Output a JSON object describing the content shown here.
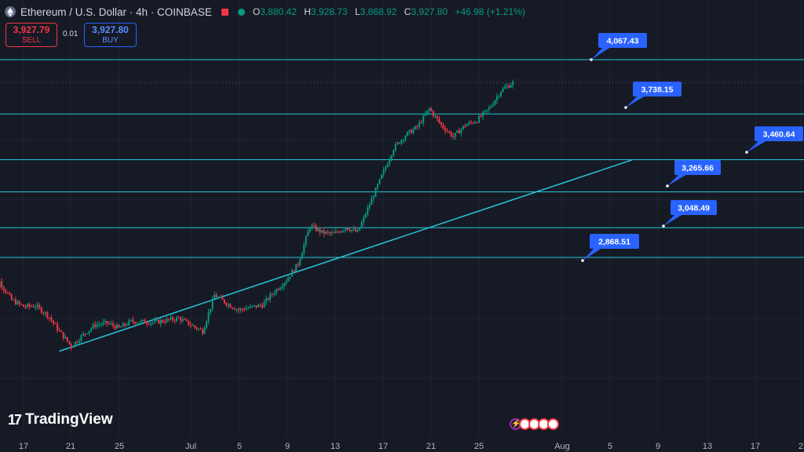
{
  "header": {
    "symbol_title": "Ethereum / U.S. Dollar · 4h · COINBASE",
    "open_label": "O",
    "open": "3,880.42",
    "high_label": "H",
    "high": "3,928.73",
    "low_label": "L",
    "low": "3,868.92",
    "close_label": "C",
    "close": "3,927.80",
    "change": "+46.98 (+1.21%)"
  },
  "trade": {
    "sell_price": "3,927.79",
    "sell_label": "SELL",
    "spread": "0.01",
    "buy_price": "3,927.80",
    "buy_label": "BUY"
  },
  "logo_text": "TradingView",
  "colors": {
    "background": "#161a25",
    "up": "#089981",
    "down": "#f23645",
    "level_line": "#26c6da",
    "callout": "#2962ff"
  },
  "chart_data": {
    "type": "candlestick",
    "symbol": "ETHUSD",
    "interval": "4h",
    "xticks": [
      "17",
      "21",
      "25",
      "Jul",
      "5",
      "9",
      "13",
      "17",
      "21",
      "25",
      "Aug",
      "5",
      "9",
      "13",
      "17",
      "2"
    ],
    "y_range": [
      2260,
      4160
    ],
    "horizontal_levels": [
      4067.43,
      3738.15,
      3460.64,
      3265.66,
      3048.49,
      2868.51
    ],
    "current_price_line": 3927.8,
    "trendline": {
      "from": {
        "date": "Jun 20",
        "price": 2300
      },
      "to": {
        "date": "Aug 7",
        "price": 3460
      }
    },
    "price_path": [
      {
        "date": "Jun 14",
        "price": 2545
      },
      {
        "date": "Jun 15",
        "price": 2720
      },
      {
        "date": "Jun 16",
        "price": 2610
      },
      {
        "date": "Jun 17",
        "price": 2570
      },
      {
        "date": "Jun 18",
        "price": 2575
      },
      {
        "date": "Jun 19",
        "price": 2520
      },
      {
        "date": "Jun 20",
        "price": 2420
      },
      {
        "date": "Jun 21",
        "price": 2330
      },
      {
        "date": "Jun 22",
        "price": 2400
      },
      {
        "date": "Jun 23",
        "price": 2460
      },
      {
        "date": "Jun 24",
        "price": 2470
      },
      {
        "date": "Jun 25",
        "price": 2440
      },
      {
        "date": "Jun 26",
        "price": 2480
      },
      {
        "date": "Jun 28",
        "price": 2475
      },
      {
        "date": "Jun 30",
        "price": 2500
      },
      {
        "date": "Jul 2",
        "price": 2420
      },
      {
        "date": "Jul 3",
        "price": 2640
      },
      {
        "date": "Jul 4",
        "price": 2590
      },
      {
        "date": "Jul 5",
        "price": 2550
      },
      {
        "date": "Jul 7",
        "price": 2580
      },
      {
        "date": "Jul 8",
        "price": 2660
      },
      {
        "date": "Jul 9",
        "price": 2730
      },
      {
        "date": "Jul 10",
        "price": 2830
      },
      {
        "date": "Jul 11",
        "price": 3060
      },
      {
        "date": "Jul 12",
        "price": 3020
      },
      {
        "date": "Jul 13",
        "price": 3010
      },
      {
        "date": "Jul 14",
        "price": 3050
      },
      {
        "date": "Jul 15",
        "price": 3020
      },
      {
        "date": "Jul 16",
        "price": 3190
      },
      {
        "date": "Jul 17",
        "price": 3360
      },
      {
        "date": "Jul 18",
        "price": 3530
      },
      {
        "date": "Jul 19",
        "price": 3610
      },
      {
        "date": "Jul 20",
        "price": 3660
      },
      {
        "date": "Jul 21",
        "price": 3770
      },
      {
        "date": "Jul 22",
        "price": 3670
      },
      {
        "date": "Jul 23",
        "price": 3600
      },
      {
        "date": "Jul 24",
        "price": 3670
      },
      {
        "date": "Jul 25",
        "price": 3700
      },
      {
        "date": "Jul 26",
        "price": 3770
      },
      {
        "date": "Jul 27",
        "price": 3880
      },
      {
        "date": "Jul 28",
        "price": 3927.8
      }
    ]
  }
}
